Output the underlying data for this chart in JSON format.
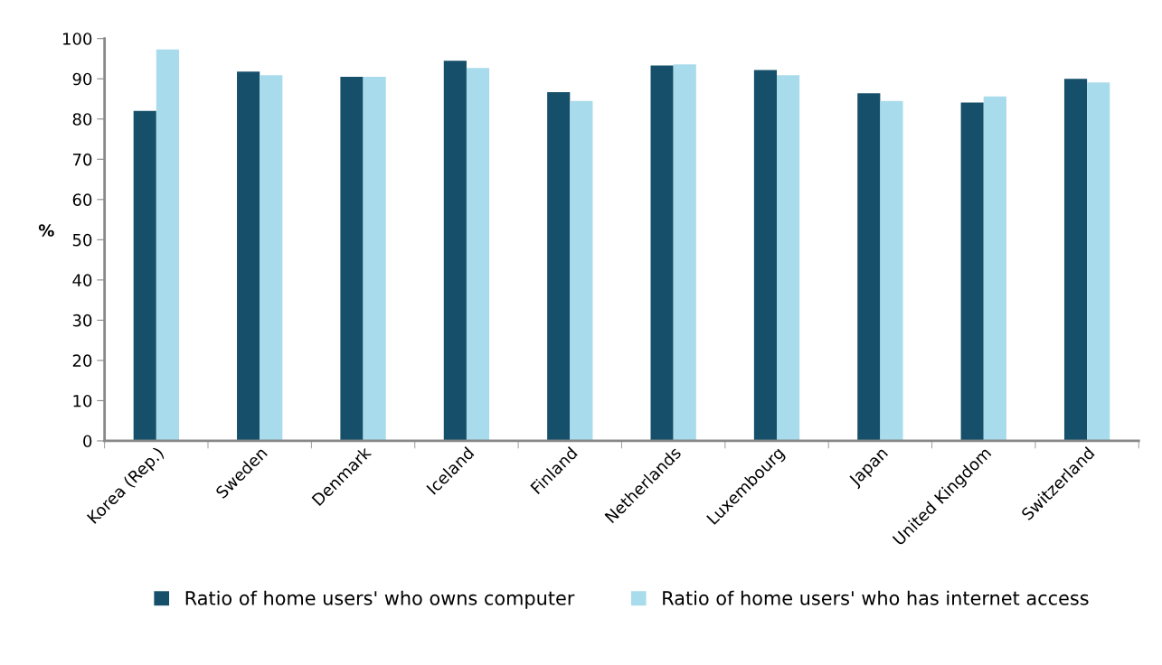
{
  "chart_data": {
    "type": "bar",
    "ylabel": "%",
    "categories": [
      "Korea (Rep.)",
      "Sweden",
      "Denmark",
      "Iceland",
      "Finland",
      "Netherlands",
      "Luxembourg",
      "Japan",
      "United Kingdom",
      "Switzerland"
    ],
    "series": [
      {
        "name": "Ratio of home users' who owns computer",
        "color": "#154f69",
        "values": [
          82,
          91.8,
          90.5,
          94.5,
          86.7,
          93.3,
          92.2,
          86.4,
          84.1,
          90.0
        ]
      },
      {
        "name": "Ratio of home users' who has internet access",
        "color": "#a8dbeb",
        "values": [
          97.3,
          90.9,
          90.5,
          92.7,
          84.5,
          93.6,
          90.9,
          84.5,
          85.6,
          89.1
        ]
      }
    ],
    "ylim": [
      0,
      100
    ],
    "yticks": [
      0,
      10,
      20,
      30,
      40,
      50,
      60,
      70,
      80,
      90,
      100
    ],
    "grid": false,
    "legend": "bottom"
  }
}
